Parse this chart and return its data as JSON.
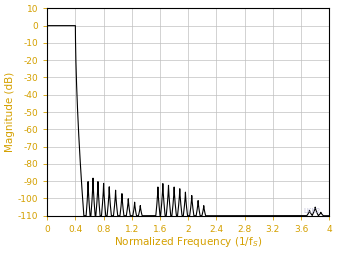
{
  "title": "",
  "xlabel": "Normalized Frequency (1/f$_S$)",
  "ylabel": "Magnitude (dB)",
  "xlim": [
    0,
    4
  ],
  "ylim": [
    -110,
    10
  ],
  "xticks": [
    0,
    0.4,
    0.8,
    1.2,
    1.6,
    2.0,
    2.4,
    2.8,
    3.2,
    3.6,
    4.0
  ],
  "yticks": [
    10,
    0,
    -10,
    -20,
    -30,
    -40,
    -50,
    -60,
    -70,
    -80,
    -90,
    -100,
    -110
  ],
  "xtick_labels": [
    "0",
    "0.4",
    "0.8",
    "1.2",
    "1.6",
    "2",
    "2.4",
    "2.8",
    "3.2",
    "3.6",
    "4"
  ],
  "ytick_labels": [
    "10",
    "0",
    "-10",
    "-20",
    "-30",
    "-40",
    "-50",
    "-60",
    "-70",
    "-80",
    "-90",
    "-100",
    "-110"
  ],
  "line_color": "#000000",
  "grid_color": "#c0c0c0",
  "axis_label_color": "#d4a000",
  "tick_label_color": "#d4a000",
  "background_color": "#ffffff",
  "watermark": "LKK2",
  "figsize": [
    3.37,
    2.54
  ],
  "dpi": 100
}
